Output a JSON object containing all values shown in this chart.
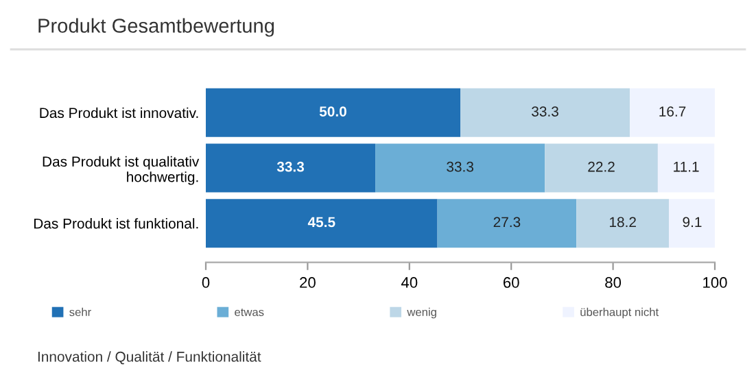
{
  "chart_data": {
    "type": "bar",
    "orientation": "horizontal",
    "stacked": true,
    "title": "Produkt Gesamtbewertung",
    "categories": [
      "Das Produkt ist innovativ.",
      "Das Produkt ist qualitativ\nhochwertig.",
      "Das Produkt ist funktional."
    ],
    "series": [
      {
        "name": "sehr",
        "color": "#2171b5",
        "values": [
          50.0,
          33.3,
          45.5
        ],
        "value_labels": [
          "50.0",
          "33.3",
          "45.5"
        ]
      },
      {
        "name": "etwas",
        "color": "#6baed6",
        "values": [
          null,
          33.3,
          27.3
        ],
        "value_labels": [
          null,
          "33.3",
          "27.3"
        ]
      },
      {
        "name": "wenig",
        "color": "#bdd7e7",
        "values": [
          33.3,
          22.2,
          18.2
        ],
        "value_labels": [
          "33.3",
          "22.2",
          "18.2"
        ]
      },
      {
        "name": "überhaupt nicht",
        "color": "#eff3ff",
        "values": [
          16.7,
          11.1,
          9.1
        ],
        "value_labels": [
          "16.7",
          "11.1",
          "9.1"
        ]
      }
    ],
    "xlim": [
      0,
      100
    ],
    "xticks": [
      0,
      20,
      40,
      60,
      80,
      100
    ],
    "grid": false,
    "legend": "bottom",
    "annotations": [
      "Innovation / Qualität / Funktionalität"
    ]
  }
}
